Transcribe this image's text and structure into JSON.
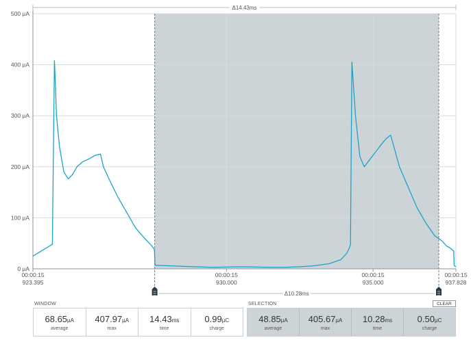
{
  "chart_data": {
    "type": "line",
    "x_unit": "ms",
    "y_unit": "µA",
    "xlim": [
      923.395,
      937.828
    ],
    "ylim": [
      0,
      500
    ],
    "yticks": [
      0,
      100,
      200,
      300,
      400,
      500
    ],
    "ytick_labels": [
      "0 µA",
      "100 µA",
      "200 µA",
      "300 µA",
      "400 µA",
      "500 µA"
    ],
    "xticks": [
      {
        "value": 923.395,
        "time": "00:00:15",
        "ms": "923.395"
      },
      {
        "value": 930.0,
        "time": "00:00:15",
        "ms": "930.000"
      },
      {
        "value": 935.0,
        "time": "00:00:15",
        "ms": "935.000"
      },
      {
        "value": 937.828,
        "time": "00:00:15",
        "ms": "937.828"
      }
    ],
    "grid": true,
    "line_color": "#1aa3c7",
    "selection": {
      "start": 927.55,
      "end": 937.83,
      "fill": "#ccd4d8"
    },
    "series": [
      {
        "x": [
          923.395,
          924.06,
          924.13,
          924.15,
          924.2,
          924.3,
          924.45,
          924.6,
          924.75,
          924.9,
          925.1,
          925.3,
          925.5,
          925.7,
          925.8,
          926.0,
          926.3,
          926.6,
          926.9,
          927.2,
          927.45,
          927.54,
          927.56,
          928.5,
          929.5,
          930.5,
          931.5,
          932.0,
          932.5,
          933.0,
          933.5,
          933.9,
          934.1,
          934.2,
          934.23,
          934.28,
          934.4,
          934.55,
          934.7,
          934.9,
          935.1,
          935.3,
          935.45,
          935.6,
          935.9,
          936.2,
          936.5,
          936.8,
          937.1,
          937.35,
          937.5,
          937.65,
          937.75,
          937.77,
          937.828
        ],
        "y": [
          25,
          48,
          408,
          380,
          300,
          240,
          190,
          176,
          185,
          200,
          210,
          215,
          222,
          225,
          200,
          175,
          140,
          110,
          80,
          60,
          45,
          38,
          7,
          5,
          3,
          4,
          3,
          3,
          4,
          6,
          10,
          18,
          30,
          42,
          48,
          405,
          300,
          220,
          200,
          215,
          230,
          245,
          255,
          262,
          200,
          160,
          120,
          90,
          65,
          55,
          45,
          40,
          35,
          6,
          4
        ]
      }
    ]
  },
  "markers": {
    "window_delta": "Δ14.43ms",
    "selection_delta": "Δ10.28ms"
  },
  "window_panel": {
    "title": "WINDOW",
    "stats": [
      {
        "value": "68.65",
        "unit": "µA",
        "label": "average"
      },
      {
        "value": "407.97",
        "unit": "µA",
        "label": "max"
      },
      {
        "value": "14.43",
        "unit": "ms",
        "label": "time"
      },
      {
        "value": "0.99",
        "unit": "µC",
        "label": "charge"
      }
    ]
  },
  "selection_panel": {
    "title": "SELECTION",
    "clear_label": "CLEAR",
    "stats": [
      {
        "value": "48.85",
        "unit": "µA",
        "label": "average"
      },
      {
        "value": "405.67",
        "unit": "µA",
        "label": "max"
      },
      {
        "value": "10.28",
        "unit": "ms",
        "label": "time"
      },
      {
        "value": "0.50",
        "unit": "µC",
        "label": "charge"
      }
    ]
  },
  "colors": {
    "trace": "#1aa3c7",
    "selection_fill": "#ccd4d8",
    "grid": "#d6dbde",
    "axis": "#8a9399",
    "marker_handle": "#2a3b44"
  }
}
